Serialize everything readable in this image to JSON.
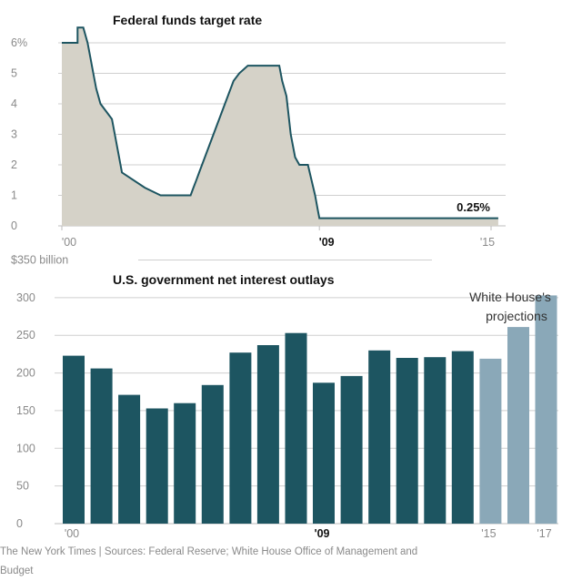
{
  "chart_data": [
    {
      "type": "area",
      "title": "Federal funds target rate",
      "xlabel": "",
      "ylabel": "",
      "ylim": [
        0,
        6.5
      ],
      "xlim": [
        2000,
        2015
      ],
      "y_ticks": [
        "6%",
        "5",
        "4",
        "3",
        "2",
        "1",
        "0"
      ],
      "x_ticks": [
        "'00",
        "'09",
        "'15"
      ],
      "grid": true,
      "end_label": "0.25%",
      "colors": {
        "fill": "#d5d2c8",
        "line": "#1d5561"
      },
      "x": [
        2000.0,
        2000.55,
        2000.55,
        2000.75,
        2000.9,
        2001.0,
        2001.1,
        2001.2,
        2001.35,
        2001.55,
        2001.75,
        2001.95,
        2002.1,
        2002.9,
        2003.45,
        2004.5,
        2004.6,
        2004.7,
        2004.8,
        2005.0,
        2005.2,
        2005.4,
        2005.6,
        2005.8,
        2006.0,
        2006.2,
        2006.5,
        2007.6,
        2007.7,
        2007.85,
        2008.0,
        2008.15,
        2008.3,
        2008.6,
        2008.85,
        2008.95,
        2009.0,
        2015.25
      ],
      "y": [
        6.0,
        6.0,
        6.5,
        6.5,
        6.0,
        5.5,
        5.0,
        4.5,
        4.0,
        3.75,
        3.5,
        2.5,
        1.75,
        1.25,
        1.0,
        1.0,
        1.25,
        1.5,
        1.75,
        2.25,
        2.75,
        3.25,
        3.75,
        4.25,
        4.75,
        5.0,
        5.25,
        5.25,
        4.75,
        4.25,
        3.0,
        2.25,
        2.0,
        2.0,
        1.0,
        0.5,
        0.25,
        0.25
      ]
    },
    {
      "type": "bar",
      "title": "U.S. government net interest outlays",
      "xlabel": "",
      "ylabel": "",
      "ylim": [
        0,
        350
      ],
      "y_ticks": [
        "$350 billion",
        "300",
        "250",
        "200",
        "150",
        "100",
        "50",
        "0"
      ],
      "x_ticks": [
        "'00",
        "'09",
        "'15",
        "'17"
      ],
      "grid": true,
      "annotation": [
        "White House's",
        "projections"
      ],
      "colors": {
        "actual": "#1d5561",
        "projected": "#8aa8b8"
      },
      "categories": [
        "2000",
        "2001",
        "2002",
        "2003",
        "2004",
        "2005",
        "2006",
        "2007",
        "2008",
        "2009",
        "2010",
        "2011",
        "2012",
        "2013",
        "2014",
        "2015",
        "2016",
        "2017"
      ],
      "values": [
        223,
        206,
        171,
        153,
        160,
        184,
        227,
        237,
        253,
        187,
        196,
        230,
        220,
        221,
        229,
        219,
        261,
        303
      ],
      "projected_from_index": 15
    }
  ],
  "footer": {
    "line1": "The New York Times | Sources: Federal Reserve; White House Office of Management and",
    "line2": "Budget"
  }
}
